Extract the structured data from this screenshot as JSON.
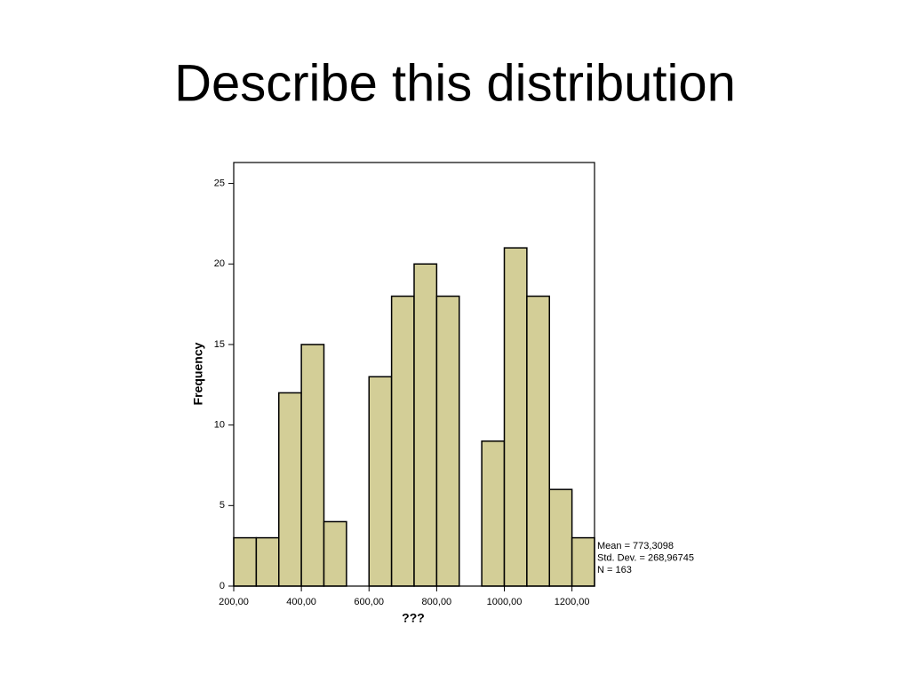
{
  "title": "Describe this distribution",
  "chart_data": {
    "type": "histogram",
    "xlabel": "???",
    "ylabel": "Frequency",
    "bins": [
      200,
      266.67,
      333.33,
      400,
      466.67,
      533.33,
      600,
      666.67,
      733.33,
      800,
      866.67,
      933.33,
      1000,
      1066.67,
      1133.33,
      1200,
      1266.67
    ],
    "counts": [
      3,
      3,
      12,
      15,
      4,
      0,
      13,
      18,
      20,
      18,
      0,
      9,
      21,
      18,
      6,
      3
    ],
    "color": "#d3ce97",
    "xlim": [
      200,
      1266.67
    ],
    "ylim": [
      0,
      26.3
    ],
    "xticks": [
      {
        "value": 200,
        "label": "200,00"
      },
      {
        "value": 400,
        "label": "400,00"
      },
      {
        "value": 600,
        "label": "600,00"
      },
      {
        "value": 800,
        "label": "800,00"
      },
      {
        "value": 1000,
        "label": "1000,00"
      },
      {
        "value": 1200,
        "label": "1200,00"
      }
    ],
    "yticks": [
      0,
      5,
      10,
      15,
      20,
      25
    ],
    "annotations": [
      "Mean = 773,3098",
      "Std. Dev. = 268,96745",
      "N = 163"
    ]
  }
}
